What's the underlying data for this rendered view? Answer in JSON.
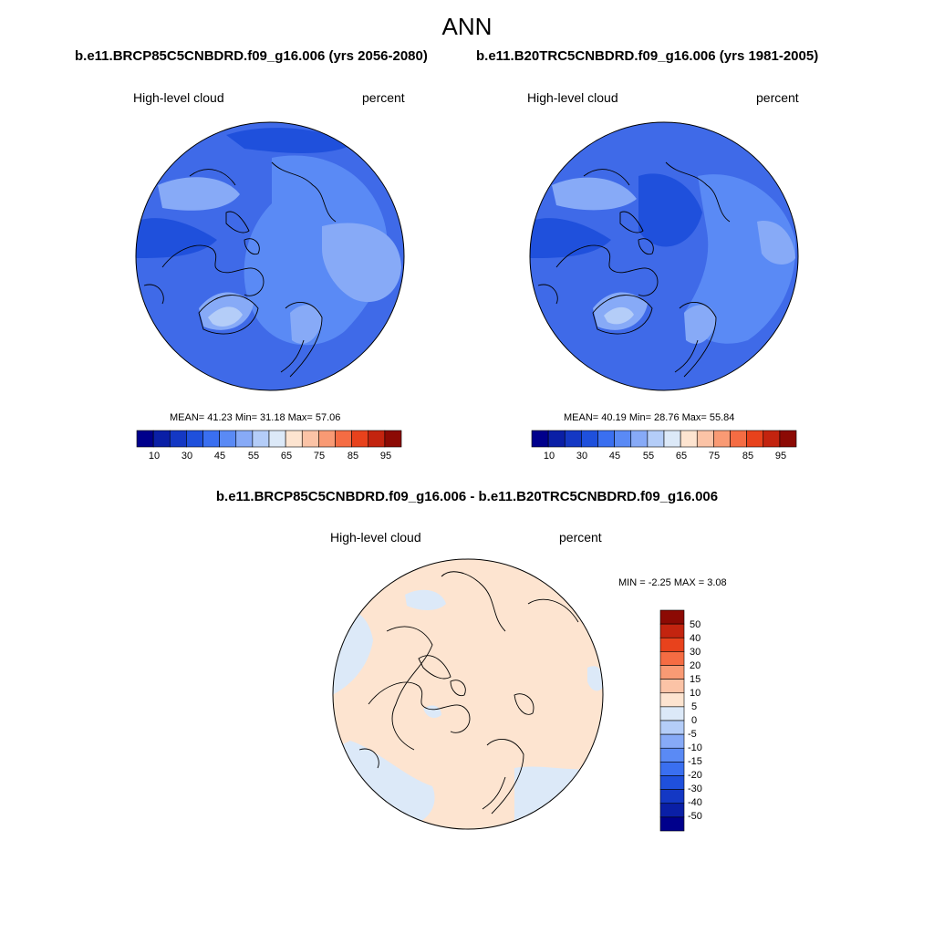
{
  "figure": {
    "title": "ANN",
    "panels": [
      {
        "id": "left",
        "title": "b.e11.BRCP85C5CNBDRD.f09_g16.006 (yrs 2056-2080)",
        "variable": "High-level cloud",
        "units": "percent",
        "stats": {
          "mean": "41.23",
          "min": "31.18",
          "max": "57.06"
        },
        "stats_text": "MEAN=  41.23  Min=  31.18  Max=  57.06"
      },
      {
        "id": "right",
        "title": "b.e11.B20TRC5CNBDRD.f09_g16.006 (yrs 1981-2005)",
        "variable": "High-level cloud",
        "units": "percent",
        "stats": {
          "mean": "40.19",
          "min": "28.76",
          "max": "55.84"
        },
        "stats_text": "MEAN=  40.19  Min=  28.76  Max=  55.84"
      },
      {
        "id": "diff",
        "title": "b.e11.BRCP85C5CNBDRD.f09_g16.006 - b.e11.B20TRC5CNBDRD.f09_g16.006",
        "variable": "High-level cloud",
        "units": "percent",
        "stats": {
          "min": "-2.25",
          "max": "3.08"
        },
        "stats_text": "MIN =  -2.25 MAX =   3.08"
      }
    ],
    "colorbar_main": {
      "colors": [
        "#00008c",
        "#0a1fa6",
        "#1438c4",
        "#1f50dc",
        "#3a6ff0",
        "#5a8af5",
        "#87aaf7",
        "#b4cdf8",
        "#dce9f8",
        "#fde4d0",
        "#fbc3a6",
        "#f99a74",
        "#f56c43",
        "#e8421c",
        "#c3240f",
        "#8c0a04"
      ],
      "tick_labels": [
        "10",
        "30",
        "45",
        "55",
        "65",
        "75",
        "85",
        "95"
      ]
    },
    "colorbar_diff": {
      "colors": [
        "#00008c",
        "#0a1fa6",
        "#1438c4",
        "#1f50dc",
        "#3a6ff0",
        "#5a8af5",
        "#87aaf7",
        "#b4cdf8",
        "#dce9f8",
        "#fde4d0",
        "#fbc3a6",
        "#f99a74",
        "#f56c43",
        "#e8421c",
        "#c3240f",
        "#8c0a04"
      ],
      "tick_labels": [
        "50",
        "40",
        "30",
        "20",
        "15",
        "10",
        "5",
        "0",
        "-5",
        "-10",
        "-15",
        "-20",
        "-30",
        "-40",
        "-50"
      ]
    },
    "map_colors": {
      "base": "#3f6ae8",
      "mid": "#5a8af5",
      "light": "#87aaf7",
      "lighter": "#b4cdf8",
      "palest": "#dce9f8",
      "dark": "#1f50dc",
      "diff_pos": "#fde4d0",
      "diff_neg": "#dce9f8"
    }
  }
}
